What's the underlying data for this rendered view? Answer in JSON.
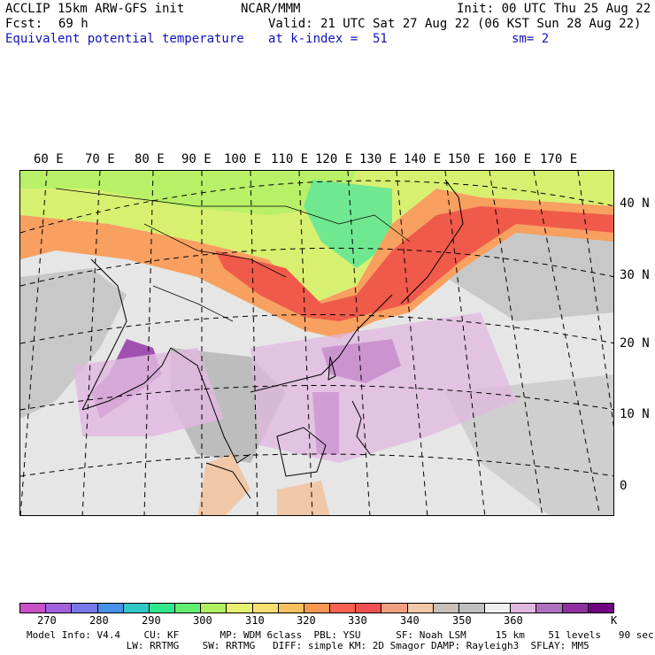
{
  "header": {
    "model": "ACCLIP 15km ARW-GFS init",
    "center": "NCAR/MMM",
    "init": "Init: 00 UTC Thu 25 Aug 22",
    "fcst_label": "Fcst:",
    "fcst_value": "69 h",
    "valid": "Valid: 21 UTC Sat 27 Aug 22 (06 KST Sun 28 Aug 22)",
    "field": "Equivalent potential temperature",
    "level": "at k-index =  51",
    "smoothing": "sm= 2"
  },
  "map": {
    "lon_labels": [
      "60 E",
      "70 E",
      "80 E",
      "90 E",
      "100 E",
      "110 E",
      "120 E",
      "130 E",
      "140 E",
      "150 E",
      "160 E",
      "170 E"
    ],
    "lat_labels": [
      "40 N",
      "30 N",
      "20 N",
      "10 N",
      "0"
    ]
  },
  "colorbar": {
    "colors": [
      "#c850c8",
      "#a060e0",
      "#7878e8",
      "#4890e8",
      "#30c8c8",
      "#30e890",
      "#60f070",
      "#b0f060",
      "#e8f070",
      "#f8e070",
      "#f8c060",
      "#f89850",
      "#f86050",
      "#f05050",
      "#f0a080",
      "#f0c8a8",
      "#c8c0b8",
      "#c0c0c0",
      "#f0f0f0",
      "#e0b8e0",
      "#b070c0",
      "#9030a0",
      "#700080"
    ],
    "ticks": [
      "270",
      "280",
      "290",
      "300",
      "310",
      "320",
      "330",
      "340",
      "350",
      "360"
    ],
    "unit": "K"
  },
  "footer": {
    "line1": "Model Info: V4.4    CU: KF       MP: WDM 6class  PBL: YSU      SF: Noah LSM     15 km    51 levels   90 sec",
    "line2": "                 LW: RRTMG    SW: RRTMG   DIFF: simple KM: 2D Smagor DAMP: Rayleigh3  SFLAY: MM5"
  }
}
